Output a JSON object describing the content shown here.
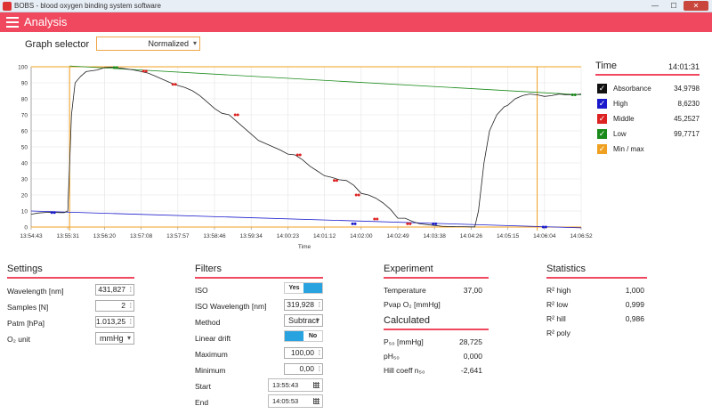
{
  "window": {
    "title": "BOBS - blood oxygen binding system software",
    "minimize": "—",
    "maximize": "☐",
    "close": "✕"
  },
  "header": {
    "title": "Analysis"
  },
  "graph_selector": {
    "label": "Graph selector",
    "value": "Normalized"
  },
  "chart_data": {
    "type": "line",
    "xlabel": "Time",
    "ylabel": "",
    "ylim": [
      0,
      100
    ],
    "yticks": [
      0,
      10,
      20,
      30,
      40,
      50,
      60,
      70,
      80,
      90,
      100
    ],
    "xticks": [
      "13:54:43",
      "13:55:31",
      "13:56:20",
      "13:57:08",
      "13:57:57",
      "13:58:46",
      "13:59:34",
      "14:00:23",
      "14:01:12",
      "14:02:00",
      "14:02:49",
      "14:03:38",
      "14:04:26",
      "14:05:15",
      "14:06:04",
      "14:06:52"
    ],
    "grid": true,
    "colors": {
      "curve": "#222222",
      "high": "#1a1acc",
      "middle": "#dd2222",
      "low": "#1a8a1a",
      "minmax": "#f0a020"
    },
    "series": [
      {
        "name": "Absorbance",
        "x": [
          0,
          0.2,
          0.5,
          0.8,
          0.9,
          1.0,
          1.05,
          1.1,
          1.2,
          1.35,
          1.5,
          1.8,
          2.0,
          2.2,
          2.5,
          2.8,
          3.0,
          3.2,
          3.4,
          3.6,
          3.9,
          4.2,
          4.4,
          4.6,
          4.8,
          5.0,
          5.2,
          5.4,
          5.6,
          5.8,
          6.0,
          6.2,
          6.4,
          6.6,
          6.8,
          7.0,
          7.2,
          7.4,
          7.6,
          7.8,
          8.0,
          8.2,
          8.4,
          8.6,
          8.8,
          9.0,
          9.2,
          9.4,
          9.6,
          9.8,
          10.0,
          10.2,
          10.4,
          10.6,
          10.8,
          11.0,
          11.2,
          11.4,
          11.6,
          11.8,
          12.0,
          12.1,
          12.2,
          12.35,
          12.5,
          12.7,
          12.9,
          13.0,
          13.2,
          13.4,
          13.6,
          13.8,
          14.0,
          14.2,
          14.4,
          14.6,
          14.8,
          15.0
        ],
        "y": [
          8,
          8.8,
          9.2,
          9,
          9,
          10,
          40,
          70,
          90,
          94,
          97,
          98,
          99.5,
          99.7,
          99,
          98,
          97,
          96,
          94,
          92,
          89,
          87,
          85,
          82,
          78,
          74,
          71,
          70,
          66,
          62,
          58,
          54,
          52,
          50,
          48,
          45.5,
          45,
          42,
          38,
          35,
          32,
          31,
          29.5,
          29,
          26,
          21,
          20,
          18,
          15,
          11,
          5.5,
          5.5,
          3.5,
          2,
          1.5,
          1,
          0.5,
          0.3,
          0.2,
          0.2,
          0.1,
          0.1,
          10,
          40,
          60,
          70,
          75,
          76,
          80,
          82,
          83,
          82.5,
          81.5,
          82,
          83,
          82.5,
          82.5,
          83
        ]
      },
      {
        "name": "High",
        "x": [
          0,
          15
        ],
        "y": [
          10,
          -0.5
        ]
      },
      {
        "name": "Low",
        "x": [
          1.05,
          15
        ],
        "y": [
          100.5,
          82.5
        ]
      },
      {
        "name": "Min / max",
        "x": [
          1.05,
          13.8
        ],
        "y": [
          0,
          100
        ]
      }
    ],
    "markers": {
      "high": [
        [
          0.6,
          9
        ],
        [
          8.8,
          2
        ],
        [
          11.0,
          2
        ],
        [
          14.0,
          0
        ]
      ],
      "middle": [
        [
          3.1,
          97.3
        ],
        [
          3.9,
          89
        ],
        [
          5.6,
          70
        ],
        [
          7.3,
          45
        ],
        [
          8.3,
          29
        ],
        [
          8.9,
          20
        ],
        [
          9.4,
          5
        ],
        [
          10.3,
          2
        ]
      ],
      "low": [
        [
          2.3,
          99.5
        ],
        [
          14.8,
          82.5
        ]
      ]
    }
  },
  "legend": {
    "title": "Time",
    "time": "14:01:31",
    "items": [
      {
        "label": "Absorbance",
        "value": "34,9798",
        "color": "#111111"
      },
      {
        "label": "High",
        "value": "8,6230",
        "color": "#1a1acc"
      },
      {
        "label": "Middle",
        "value": "45,2527",
        "color": "#dd2222"
      },
      {
        "label": "Low",
        "value": "99,7717",
        "color": "#1a8a1a"
      },
      {
        "label": "Min / max",
        "value": "",
        "color": "#f0a020"
      }
    ]
  },
  "settings": {
    "title": "Settings",
    "wavelength_label": "Wavelength [nm]",
    "wavelength": "431,827",
    "samples_label": "Samples [N]",
    "samples": "2",
    "patm_label": "Patm [hPa]",
    "patm": "1.013,25",
    "o2unit_label": "O₂ unit",
    "o2unit": "mmHg"
  },
  "filters": {
    "title": "Filters",
    "iso_label": "ISO",
    "iso_on": "Yes",
    "iso_wl_label": "ISO Wavelength [nm]",
    "iso_wl": "319,928",
    "method_label": "Method",
    "method": "Subtract",
    "drift_label": "Linear drift",
    "drift_off": "No",
    "max_label": "Maximum",
    "max": "100,00",
    "min_label": "Minimum",
    "min": "0,00",
    "start_label": "Start",
    "start": "13:55:43",
    "end_label": "End",
    "end": "14:05:53"
  },
  "experiment": {
    "title": "Experiment",
    "temp_label": "Temperature",
    "temp": "37,00",
    "pvap_label": "Pvap O₂ [mmHg]"
  },
  "calculated": {
    "title": "Calculated",
    "p50_label": "P₅₀ [mmHg]",
    "p50": "28,725",
    "ph50_label": "pH₅₀",
    "ph50": "0,000",
    "hill_label": "Hill coeff n₅₀",
    "hill": "-2,641"
  },
  "statistics": {
    "title": "Statistics",
    "r2high_label": "R² high",
    "r2high": "1,000",
    "r2low_label": "R² low",
    "r2low": "0,999",
    "r2hill_label": "R² hill",
    "r2hill": "0,986",
    "r2poly_label": "R² poly"
  }
}
